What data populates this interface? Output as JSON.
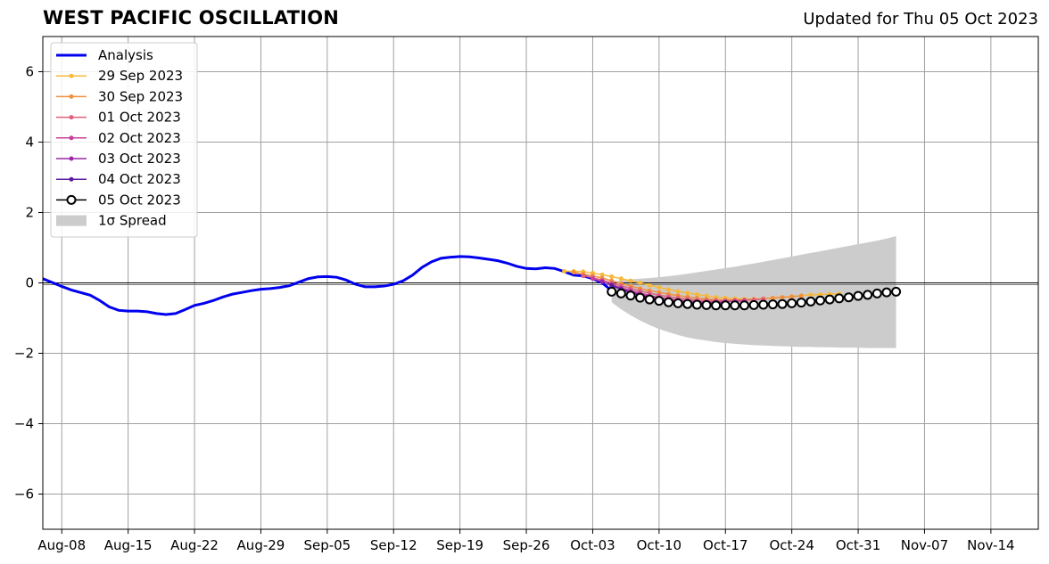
{
  "title": "WEST PACIFIC OSCILLATION",
  "updated": "Updated for Thu 05 Oct 2023",
  "chart_data": {
    "type": "line",
    "title": "WEST PACIFIC OSCILLATION",
    "x_start_date": "2023-08-02",
    "xlim": [
      "2023-08-06",
      "2023-11-19"
    ],
    "ylim": [
      -7,
      7
    ],
    "x_ticks": [
      {
        "label": "Aug-08",
        "date": "2023-08-08"
      },
      {
        "label": "Aug-15",
        "date": "2023-08-15"
      },
      {
        "label": "Aug-22",
        "date": "2023-08-22"
      },
      {
        "label": "Aug-29",
        "date": "2023-08-29"
      },
      {
        "label": "Sep-05",
        "date": "2023-09-05"
      },
      {
        "label": "Sep-12",
        "date": "2023-09-12"
      },
      {
        "label": "Sep-19",
        "date": "2023-09-19"
      },
      {
        "label": "Sep-26",
        "date": "2023-09-26"
      },
      {
        "label": "Oct-03",
        "date": "2023-10-03"
      },
      {
        "label": "Oct-10",
        "date": "2023-10-10"
      },
      {
        "label": "Oct-17",
        "date": "2023-10-17"
      },
      {
        "label": "Oct-24",
        "date": "2023-10-24"
      },
      {
        "label": "Oct-31",
        "date": "2023-10-31"
      },
      {
        "label": "Nov-07",
        "date": "2023-11-07"
      },
      {
        "label": "Nov-14",
        "date": "2023-11-14"
      }
    ],
    "y_ticks": [
      {
        "label": "6",
        "value": 6
      },
      {
        "label": "4",
        "value": 4
      },
      {
        "label": "2",
        "value": 2
      },
      {
        "label": "0",
        "value": 0
      },
      {
        "label": "−2",
        "value": -2
      },
      {
        "label": "−4",
        "value": -4
      },
      {
        "label": "−6",
        "value": -6
      }
    ],
    "grid": true,
    "zero_line": true,
    "legend_position": "top-left",
    "legend": [
      "Analysis",
      "29 Sep 2023",
      "30 Sep 2023",
      "01 Oct 2023",
      "02 Oct 2023",
      "03 Oct 2023",
      "04 Oct 2023",
      "05 Oct 2023",
      "1σ Spread"
    ],
    "analysis": {
      "name": "Analysis",
      "color": "#0000ee",
      "points": [
        [
          "2023-08-06",
          0.12
        ],
        [
          "2023-08-08",
          -0.1
        ],
        [
          "2023-08-09",
          -0.2
        ],
        [
          "2023-08-11",
          -0.35
        ],
        [
          "2023-08-12",
          -0.5
        ],
        [
          "2023-08-13",
          -0.68
        ],
        [
          "2023-08-14",
          -0.78
        ],
        [
          "2023-08-15",
          -0.8
        ],
        [
          "2023-08-16",
          -0.8
        ],
        [
          "2023-08-17",
          -0.82
        ],
        [
          "2023-08-18",
          -0.87
        ],
        [
          "2023-08-19",
          -0.9
        ],
        [
          "2023-08-20",
          -0.87
        ],
        [
          "2023-08-21",
          -0.76
        ],
        [
          "2023-08-22",
          -0.64
        ],
        [
          "2023-08-23",
          -0.58
        ],
        [
          "2023-08-24",
          -0.5
        ],
        [
          "2023-08-25",
          -0.4
        ],
        [
          "2023-08-26",
          -0.32
        ],
        [
          "2023-08-27",
          -0.27
        ],
        [
          "2023-08-28",
          -0.22
        ],
        [
          "2023-08-29",
          -0.18
        ],
        [
          "2023-08-30",
          -0.16
        ],
        [
          "2023-08-31",
          -0.13
        ],
        [
          "2023-09-01",
          -0.08
        ],
        [
          "2023-09-02",
          0.02
        ],
        [
          "2023-09-03",
          0.12
        ],
        [
          "2023-09-04",
          0.17
        ],
        [
          "2023-09-05",
          0.18
        ],
        [
          "2023-09-06",
          0.16
        ],
        [
          "2023-09-07",
          0.08
        ],
        [
          "2023-09-08",
          -0.04
        ],
        [
          "2023-09-09",
          -0.11
        ],
        [
          "2023-09-10",
          -0.11
        ],
        [
          "2023-09-11",
          -0.09
        ],
        [
          "2023-09-12",
          -0.04
        ],
        [
          "2023-09-13",
          0.06
        ],
        [
          "2023-09-14",
          0.22
        ],
        [
          "2023-09-15",
          0.44
        ],
        [
          "2023-09-16",
          0.6
        ],
        [
          "2023-09-17",
          0.7
        ],
        [
          "2023-09-18",
          0.73
        ],
        [
          "2023-09-19",
          0.75
        ],
        [
          "2023-09-20",
          0.74
        ],
        [
          "2023-09-21",
          0.71
        ],
        [
          "2023-09-22",
          0.67
        ],
        [
          "2023-09-23",
          0.63
        ],
        [
          "2023-09-24",
          0.56
        ],
        [
          "2023-09-25",
          0.47
        ],
        [
          "2023-09-26",
          0.41
        ],
        [
          "2023-09-27",
          0.4
        ],
        [
          "2023-09-28",
          0.43
        ],
        [
          "2023-09-29",
          0.41
        ],
        [
          "2023-09-30",
          0.32
        ],
        [
          "2023-10-01",
          0.22
        ],
        [
          "2023-10-02",
          0.2
        ],
        [
          "2023-10-03",
          0.12
        ],
        [
          "2023-10-04",
          0.0
        ],
        [
          "2023-10-05",
          -0.22
        ]
      ]
    },
    "forecasts": [
      {
        "name": "29 Sep 2023",
        "color": "#f7b93a",
        "start": "2023-09-30",
        "values": [
          0.33,
          0.33,
          0.32,
          0.28,
          0.23,
          0.18,
          0.12,
          0.06,
          0.0,
          -0.07,
          -0.13,
          -0.19,
          -0.24,
          -0.29,
          -0.33,
          -0.37,
          -0.41,
          -0.43,
          -0.45,
          -0.46,
          -0.46,
          -0.45,
          -0.43,
          -0.41,
          -0.39,
          -0.36,
          -0.34,
          -0.33,
          -0.32,
          -0.31
        ]
      },
      {
        "name": "30 Sep 2023",
        "color": "#f28f3b",
        "start": "2023-10-01",
        "values": [
          0.3,
          0.25,
          0.2,
          0.14,
          0.06,
          -0.02,
          -0.09,
          -0.16,
          -0.22,
          -0.27,
          -0.32,
          -0.36,
          -0.4,
          -0.43,
          -0.46,
          -0.48,
          -0.49,
          -0.49,
          -0.48,
          -0.47,
          -0.45,
          -0.43,
          -0.41,
          -0.39,
          -0.37
        ]
      },
      {
        "name": "01 Oct 2023",
        "color": "#e0607e",
        "start": "2023-10-02",
        "values": [
          0.2,
          0.15,
          0.08,
          0.0,
          -0.08,
          -0.16,
          -0.23,
          -0.29,
          -0.35,
          -0.39,
          -0.43,
          -0.46,
          -0.49,
          -0.5,
          -0.51,
          -0.51,
          -0.5,
          -0.49,
          -0.48,
          -0.46
        ]
      },
      {
        "name": "02 Oct 2023",
        "color": "#c7409a",
        "start": "2023-10-03",
        "values": [
          0.12,
          0.04,
          -0.05,
          -0.14,
          -0.22,
          -0.29,
          -0.36,
          -0.41,
          -0.45,
          -0.49,
          -0.51,
          -0.53,
          -0.54,
          -0.54,
          -0.53,
          -0.52,
          -0.51
        ]
      },
      {
        "name": "03 Oct 2023",
        "color": "#9b27a8",
        "start": "2023-10-04",
        "values": [
          0.04,
          -0.06,
          -0.16,
          -0.25,
          -0.33,
          -0.4,
          -0.45,
          -0.5,
          -0.53,
          -0.55,
          -0.56,
          -0.57,
          -0.57,
          -0.56
        ]
      },
      {
        "name": "04 Oct 2023",
        "color": "#5b1aa0",
        "start": "2023-10-05",
        "values": [
          -0.08,
          -0.18,
          -0.28,
          -0.36,
          -0.43,
          -0.49,
          -0.53,
          -0.56,
          -0.58,
          -0.59,
          -0.6,
          -0.6
        ]
      }
    ],
    "latest_forecast": {
      "name": "05 Oct 2023",
      "color": "#000000",
      "start": "2023-10-05",
      "values": [
        -0.25,
        -0.3,
        -0.36,
        -0.42,
        -0.47,
        -0.51,
        -0.55,
        -0.58,
        -0.6,
        -0.62,
        -0.63,
        -0.64,
        -0.64,
        -0.64,
        -0.64,
        -0.63,
        -0.62,
        -0.61,
        -0.6,
        -0.58,
        -0.56,
        -0.53,
        -0.5,
        -0.47,
        -0.44,
        -0.41,
        -0.37,
        -0.34,
        -0.3,
        -0.27,
        -0.25
      ]
    },
    "spread": {
      "name": "1σ Spread",
      "color": "#cccccc",
      "start": "2023-10-05",
      "upper": [
        0.0,
        0.08,
        0.1,
        0.12,
        0.14,
        0.16,
        0.19,
        0.22,
        0.26,
        0.3,
        0.34,
        0.38,
        0.42,
        0.46,
        0.51,
        0.55,
        0.6,
        0.65,
        0.7,
        0.75,
        0.8,
        0.85,
        0.9,
        0.95,
        1.0,
        1.05,
        1.1,
        1.15,
        1.2,
        1.26,
        1.33
      ],
      "lower": [
        -0.55,
        -0.75,
        -0.92,
        -1.07,
        -1.2,
        -1.31,
        -1.4,
        -1.48,
        -1.55,
        -1.6,
        -1.64,
        -1.68,
        -1.71,
        -1.73,
        -1.75,
        -1.77,
        -1.78,
        -1.79,
        -1.8,
        -1.81,
        -1.82,
        -1.82,
        -1.83,
        -1.83,
        -1.84,
        -1.84,
        -1.84,
        -1.85,
        -1.85,
        -1.85,
        -1.85
      ]
    }
  }
}
